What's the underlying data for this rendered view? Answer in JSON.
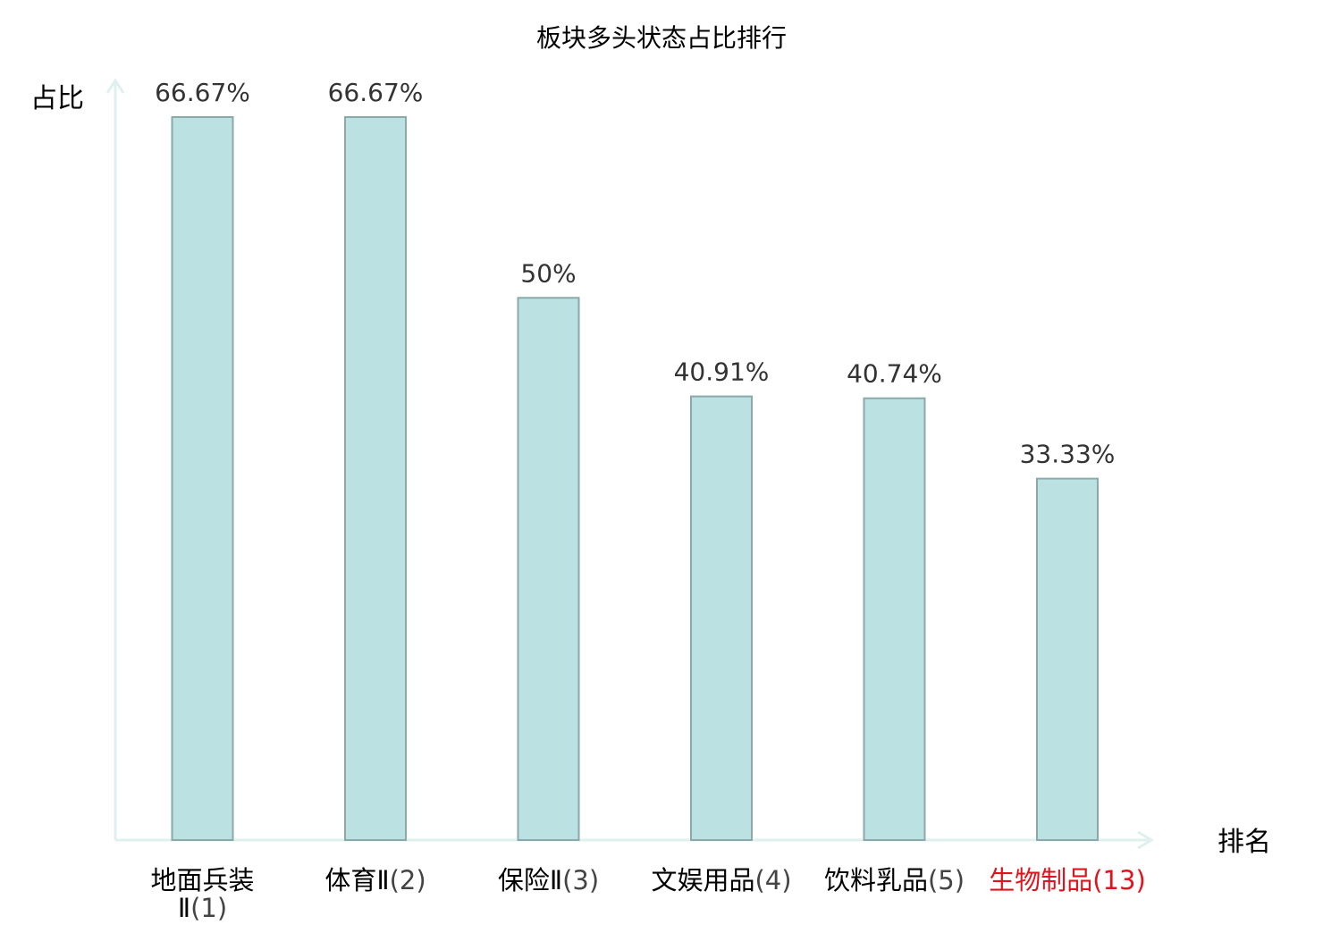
{
  "chart_data": {
    "type": "bar",
    "title": "板块多头状态占比排行",
    "ylabel": "占比",
    "xlabel": "排名",
    "ylim": [
      0,
      70
    ],
    "grid": false,
    "legend": "none",
    "categories": [
      {
        "name": "地面兵装Ⅱ",
        "rank": "(1)",
        "highlight": false
      },
      {
        "name": "体育Ⅱ",
        "rank": "(2)",
        "highlight": false
      },
      {
        "name": "保险Ⅱ",
        "rank": "(3)",
        "highlight": false
      },
      {
        "name": "文娱用品",
        "rank": "(4)",
        "highlight": false
      },
      {
        "name": "饮料乳品",
        "rank": "(5)",
        "highlight": false
      },
      {
        "name": "生物制品",
        "rank": "(13)",
        "highlight": true
      }
    ],
    "values": [
      66.67,
      66.67,
      50,
      40.91,
      40.74,
      33.33
    ],
    "value_labels": [
      "66.67%",
      "66.67%",
      "50%",
      "40.91%",
      "40.74%",
      "33.33%"
    ],
    "colors": {
      "bar_fill": "#bce1e3",
      "bar_stroke": "#8aa9a9",
      "axis": "#e0f0ef",
      "text": "#000000",
      "value_label": "#333333",
      "rank_text": "#444444",
      "highlight": "#e0141e"
    }
  }
}
